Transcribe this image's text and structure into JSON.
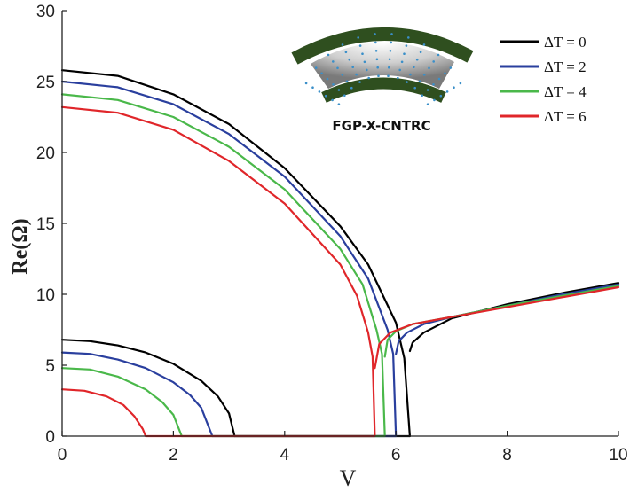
{
  "chart_data": {
    "type": "line",
    "title": "",
    "xlabel": "V",
    "ylabel": "Re(Ω)",
    "xlim": [
      0,
      10
    ],
    "ylim": [
      0,
      30
    ],
    "xticks": [
      0,
      2,
      4,
      6,
      8,
      10
    ],
    "yticks": [
      0,
      5,
      10,
      15,
      20,
      25,
      30
    ],
    "grid": false,
    "legend_position": "top-right",
    "inset_label": "FGP-X-CNTRC",
    "series": [
      {
        "name": "ΔT = 0",
        "color": "#000000",
        "branches": [
          {
            "x": [
              0,
              1,
              2,
              3,
              4,
              5,
              5.5,
              6.0,
              6.15,
              6.25
            ],
            "y": [
              25.8,
              25.4,
              24.1,
              22.0,
              18.9,
              14.8,
              12.1,
              8.0,
              5.5,
              0
            ]
          },
          {
            "x": [
              6.25,
              6.3,
              6.5,
              7,
              8,
              9,
              10
            ],
            "y": [
              6.0,
              6.6,
              7.3,
              8.3,
              9.3,
              10.1,
              10.8
            ]
          },
          {
            "x": [
              0,
              0.5,
              1.0,
              1.5,
              2.0,
              2.5,
              2.8,
              3.0,
              3.1
            ],
            "y": [
              6.8,
              6.7,
              6.4,
              5.9,
              5.1,
              3.9,
              2.8,
              1.6,
              0
            ]
          }
        ]
      },
      {
        "name": "ΔT = 2",
        "color": "#2a3f9e",
        "branches": [
          {
            "x": [
              0,
              1,
              2,
              3,
              4,
              5,
              5.5,
              5.85,
              5.95,
              6.0
            ],
            "y": [
              25.0,
              24.6,
              23.4,
              21.3,
              18.3,
              14.1,
              11.1,
              7.5,
              5.8,
              0
            ]
          },
          {
            "x": [
              6.0,
              6.05,
              6.2,
              6.5,
              7,
              8,
              9,
              10
            ],
            "y": [
              5.8,
              6.7,
              7.3,
              7.9,
              8.4,
              9.2,
              10.0,
              10.7
            ]
          },
          {
            "x": [
              0,
              0.5,
              1.0,
              1.5,
              2.0,
              2.3,
              2.5,
              2.7
            ],
            "y": [
              5.9,
              5.8,
              5.4,
              4.8,
              3.8,
              2.9,
              2.0,
              0
            ]
          }
        ]
      },
      {
        "name": "ΔT = 4",
        "color": "#4ab84a",
        "branches": [
          {
            "x": [
              0,
              1,
              2,
              3,
              4,
              5,
              5.4,
              5.65,
              5.75,
              5.8
            ],
            "y": [
              24.1,
              23.7,
              22.5,
              20.4,
              17.4,
              13.2,
              10.7,
              7.5,
              5.8,
              0
            ]
          },
          {
            "x": [
              5.8,
              5.85,
              6.0,
              6.3,
              7,
              8,
              9,
              10
            ],
            "y": [
              5.6,
              6.8,
              7.4,
              7.9,
              8.4,
              9.2,
              9.9,
              10.6
            ]
          },
          {
            "x": [
              0,
              0.5,
              1.0,
              1.5,
              1.8,
              2.0,
              2.15
            ],
            "y": [
              4.8,
              4.7,
              4.2,
              3.3,
              2.4,
              1.5,
              0
            ]
          }
        ]
      },
      {
        "name": "ΔT = 6",
        "color": "#e0262a",
        "branches": [
          {
            "x": [
              0,
              1,
              2,
              3,
              4,
              5,
              5.3,
              5.5,
              5.58,
              5.62
            ],
            "y": [
              23.2,
              22.8,
              21.6,
              19.4,
              16.4,
              12.1,
              9.9,
              7.3,
              5.6,
              0
            ]
          },
          {
            "x": [
              5.62,
              5.7,
              5.9,
              6.3,
              7,
              8,
              9,
              10
            ],
            "y": [
              4.8,
              6.5,
              7.3,
              7.9,
              8.4,
              9.1,
              9.8,
              10.5
            ]
          },
          {
            "x": [
              0,
              0.4,
              0.8,
              1.1,
              1.3,
              1.45,
              1.5
            ],
            "y": [
              3.3,
              3.2,
              2.8,
              2.2,
              1.4,
              0.5,
              0
            ]
          }
        ]
      }
    ]
  }
}
